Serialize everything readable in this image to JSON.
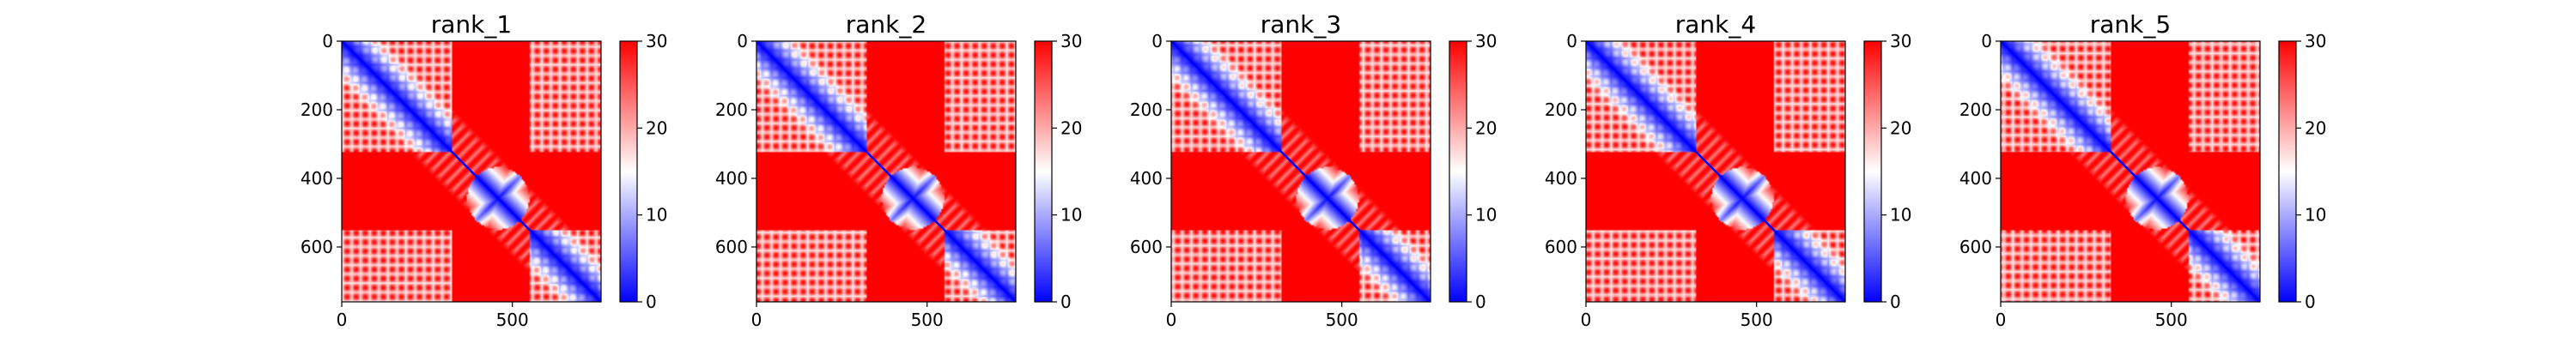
{
  "figure": {
    "colormap": "bwr",
    "colors": {
      "low": "#0000ff",
      "mid": "#ffffff",
      "high": "#ff0000"
    }
  },
  "chart_data": [
    {
      "type": "heatmap",
      "title": "rank_1",
      "xlim": [
        0,
        760
      ],
      "ylim": [
        760,
        0
      ],
      "xticks": [
        0,
        500
      ],
      "yticks": [
        0,
        200,
        400,
        600
      ],
      "colorbar": {
        "range": [
          0,
          30
        ],
        "ticks": [
          0,
          10,
          20,
          30
        ]
      },
      "grid": false
    },
    {
      "type": "heatmap",
      "title": "rank_2",
      "xlim": [
        0,
        760
      ],
      "ylim": [
        760,
        0
      ],
      "xticks": [
        0,
        500
      ],
      "yticks": [
        0,
        200,
        400,
        600
      ],
      "colorbar": {
        "range": [
          0,
          30
        ],
        "ticks": [
          0,
          10,
          20,
          30
        ]
      },
      "grid": false
    },
    {
      "type": "heatmap",
      "title": "rank_3",
      "xlim": [
        0,
        760
      ],
      "ylim": [
        760,
        0
      ],
      "xticks": [
        0,
        500
      ],
      "yticks": [
        0,
        200,
        400,
        600
      ],
      "colorbar": {
        "range": [
          0,
          30
        ],
        "ticks": [
          0,
          10,
          20,
          30
        ]
      },
      "grid": false
    },
    {
      "type": "heatmap",
      "title": "rank_4",
      "xlim": [
        0,
        760
      ],
      "ylim": [
        760,
        0
      ],
      "xticks": [
        0,
        500
      ],
      "yticks": [
        0,
        200,
        400,
        600
      ],
      "colorbar": {
        "range": [
          0,
          30
        ],
        "ticks": [
          0,
          10,
          20,
          30
        ]
      },
      "grid": false
    },
    {
      "type": "heatmap",
      "title": "rank_5",
      "xlim": [
        0,
        760
      ],
      "ylim": [
        760,
        0
      ],
      "xticks": [
        0,
        500
      ],
      "yticks": [
        0,
        200,
        400,
        600
      ],
      "colorbar": {
        "range": [
          0,
          30
        ],
        "ticks": [
          0,
          10,
          20,
          30
        ]
      },
      "grid": false
    }
  ]
}
